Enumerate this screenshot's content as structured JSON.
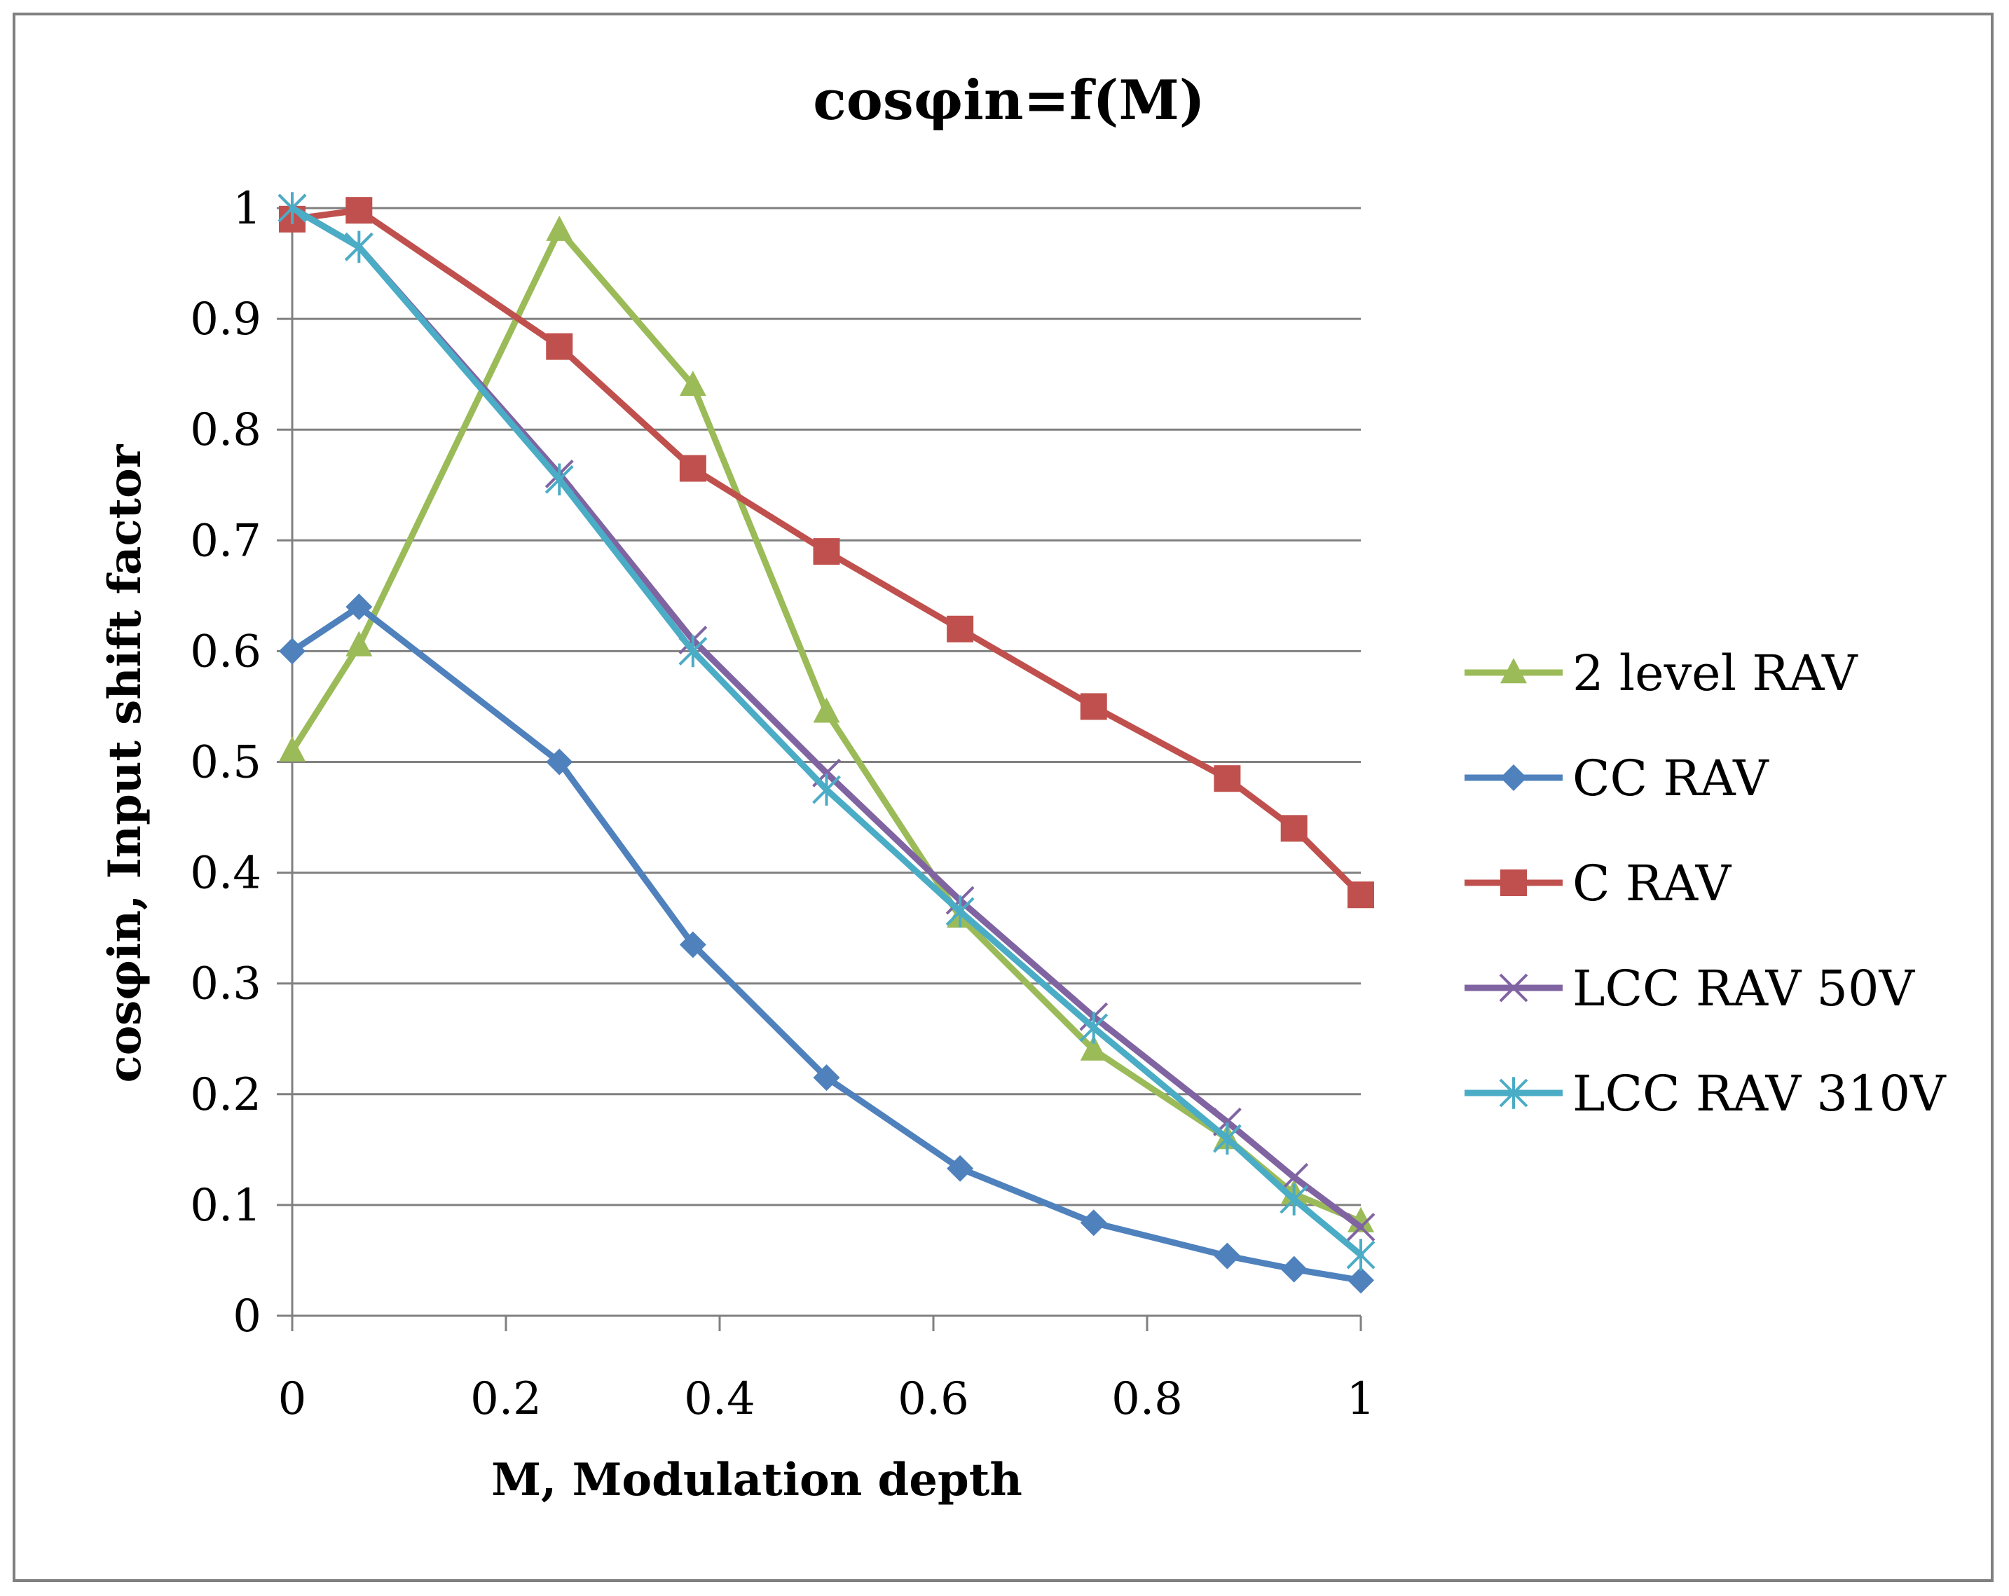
{
  "chart_data": {
    "type": "line",
    "title": "cosφin=f(M)",
    "xlabel": "M, Modulation depth",
    "ylabel": "cosφin, Input shift factor",
    "xlim": [
      0,
      1
    ],
    "ylim": [
      0,
      1
    ],
    "x_ticks": [
      "0",
      "0.2",
      "0.4",
      "0.6",
      "0.8",
      "1"
    ],
    "x_tick_values": [
      0,
      0.2,
      0.4,
      0.6,
      0.8,
      1
    ],
    "y_ticks": [
      "0",
      "0.1",
      "0.2",
      "0.3",
      "0.4",
      "0.5",
      "0.6",
      "0.7",
      "0.8",
      "0.9",
      "1"
    ],
    "y_tick_values": [
      0,
      0.1,
      0.2,
      0.3,
      0.4,
      0.5,
      0.6,
      0.7,
      0.8,
      0.9,
      1
    ],
    "grid": "horizontal",
    "legend_position": "right",
    "series": [
      {
        "name": "2 level RAV",
        "color": "#9bbb59",
        "marker": "triangle",
        "x": [
          0,
          0.0625,
          0.25,
          0.375,
          0.5,
          0.625,
          0.75,
          0.875,
          0.9375,
          1
        ],
        "values": [
          0.51,
          0.605,
          0.98,
          0.84,
          0.545,
          0.36,
          0.24,
          0.16,
          0.11,
          0.085
        ]
      },
      {
        "name": "CC RAV",
        "color": "#4f81bd",
        "marker": "diamond",
        "x": [
          0,
          0.0625,
          0.25,
          0.375,
          0.5,
          0.625,
          0.75,
          0.875,
          0.9375,
          1
        ],
        "values": [
          0.6,
          0.64,
          0.5,
          0.335,
          0.215,
          0.133,
          0.084,
          0.054,
          0.042,
          0.032
        ]
      },
      {
        "name": "C RAV",
        "color": "#c0504d",
        "marker": "square",
        "x": [
          0,
          0.0625,
          0.25,
          0.375,
          0.5,
          0.625,
          0.75,
          0.875,
          0.9375,
          1
        ],
        "values": [
          0.99,
          0.998,
          0.875,
          0.765,
          0.69,
          0.62,
          0.55,
          0.485,
          0.44,
          0.38
        ]
      },
      {
        "name": "LCC RAV 50V",
        "color": "#8064a2",
        "marker": "x",
        "x": [
          0,
          0.0625,
          0.25,
          0.375,
          0.5,
          0.625,
          0.75,
          0.875,
          0.9375,
          1
        ],
        "values": [
          1.0,
          0.965,
          0.76,
          0.61,
          0.49,
          0.375,
          0.27,
          0.175,
          0.125,
          0.08
        ]
      },
      {
        "name": "LCC RAV 310V",
        "color": "#4bacc6",
        "marker": "star",
        "x": [
          0,
          0.0625,
          0.25,
          0.375,
          0.5,
          0.625,
          0.75,
          0.875,
          0.9375,
          1
        ],
        "values": [
          1.0,
          0.965,
          0.755,
          0.6,
          0.475,
          0.365,
          0.26,
          0.16,
          0.105,
          0.055
        ]
      }
    ]
  }
}
